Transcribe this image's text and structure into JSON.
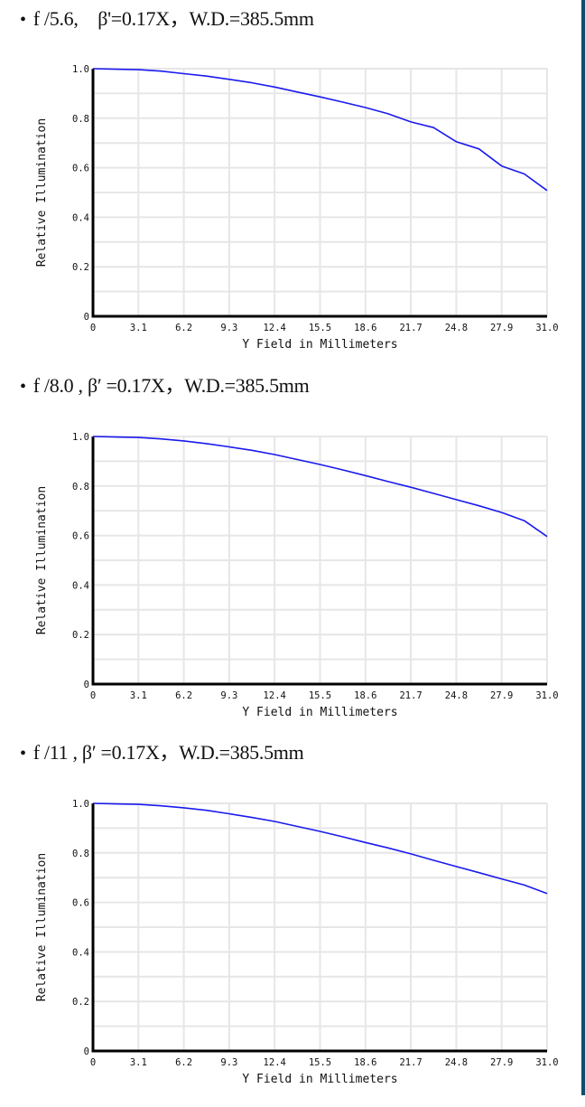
{
  "sections": [
    {
      "title": "f /5.6,　β'=0.17X，W.D.=385.5mm"
    },
    {
      "title": "f /8.0 , β′ =0.17X，W.D.=385.5mm"
    },
    {
      "title": "f /11 , β′ =0.17X，W.D.=385.5mm"
    }
  ],
  "colors": {
    "line": "#1a1aee",
    "grid": "#e6e6e6",
    "axis": "#000000",
    "frame": "#0f4f6e"
  },
  "chart_data": [
    {
      "type": "line",
      "title": "",
      "xlabel": "Y Field in Millimeters",
      "ylabel": "Relative Illumination",
      "x_ticks": [
        "0",
        "3.1",
        "6.2",
        "9.3",
        "12.4",
        "15.5",
        "18.6",
        "21.7",
        "24.8",
        "27.9",
        "31.0"
      ],
      "y_ticks": [
        "0",
        "0.2",
        "0.4",
        "0.6",
        "0.8",
        "1.0"
      ],
      "xlim": [
        0,
        31.0
      ],
      "ylim": [
        0,
        1.0
      ],
      "grid": true,
      "series": [
        {
          "x": [
            0,
            3.1,
            4.65,
            6.2,
            7.75,
            9.3,
            10.85,
            12.4,
            13.95,
            15.5,
            17.05,
            18.6,
            20.15,
            21.7,
            23.25,
            24.8,
            26.35,
            27.9,
            29.45,
            31.0
          ],
          "y": [
            1.0,
            0.996,
            0.99,
            0.98,
            0.97,
            0.957,
            0.943,
            0.926,
            0.906,
            0.886,
            0.865,
            0.843,
            0.818,
            0.785,
            0.762,
            0.705,
            0.676,
            0.607,
            0.575,
            0.508
          ]
        }
      ]
    },
    {
      "type": "line",
      "title": "",
      "xlabel": "Y Field in Millimeters",
      "ylabel": "Relative Illumination",
      "x_ticks": [
        "0",
        "3.1",
        "6.2",
        "9.3",
        "12.4",
        "15.5",
        "18.6",
        "21.7",
        "24.8",
        "27.9",
        "31.0"
      ],
      "y_ticks": [
        "0",
        "0.2",
        "0.4",
        "0.6",
        "0.8",
        "1.0"
      ],
      "xlim": [
        0,
        31.0
      ],
      "ylim": [
        0,
        1.0
      ],
      "grid": true,
      "series": [
        {
          "x": [
            0,
            3.1,
            4.65,
            6.2,
            7.75,
            9.3,
            10.85,
            12.4,
            13.95,
            15.5,
            17.05,
            18.6,
            20.15,
            21.7,
            23.25,
            24.8,
            26.35,
            27.9,
            29.45,
            31.0
          ],
          "y": [
            1.0,
            0.996,
            0.99,
            0.982,
            0.971,
            0.958,
            0.944,
            0.927,
            0.907,
            0.887,
            0.865,
            0.842,
            0.818,
            0.795,
            0.77,
            0.745,
            0.72,
            0.693,
            0.66,
            0.596
          ]
        }
      ]
    },
    {
      "type": "line",
      "title": "",
      "xlabel": "Y Field in Millimeters",
      "ylabel": "Relative Illumination",
      "x_ticks": [
        "0",
        "3.1",
        "6.2",
        "9.3",
        "12.4",
        "15.5",
        "18.6",
        "21.7",
        "24.8",
        "27.9",
        "31.0"
      ],
      "y_ticks": [
        "0",
        "0.2",
        "0.4",
        "0.6",
        "0.8",
        "1.0"
      ],
      "xlim": [
        0,
        31.0
      ],
      "ylim": [
        0,
        1.0
      ],
      "grid": true,
      "series": [
        {
          "x": [
            0,
            3.1,
            4.65,
            6.2,
            7.75,
            9.3,
            10.85,
            12.4,
            13.95,
            15.5,
            17.05,
            18.6,
            20.15,
            21.7,
            23.25,
            24.8,
            26.35,
            27.9,
            29.45,
            31.0
          ],
          "y": [
            1.0,
            0.996,
            0.99,
            0.982,
            0.972,
            0.958,
            0.943,
            0.927,
            0.907,
            0.887,
            0.865,
            0.842,
            0.82,
            0.796,
            0.77,
            0.745,
            0.72,
            0.695,
            0.67,
            0.636
          ]
        }
      ]
    }
  ]
}
